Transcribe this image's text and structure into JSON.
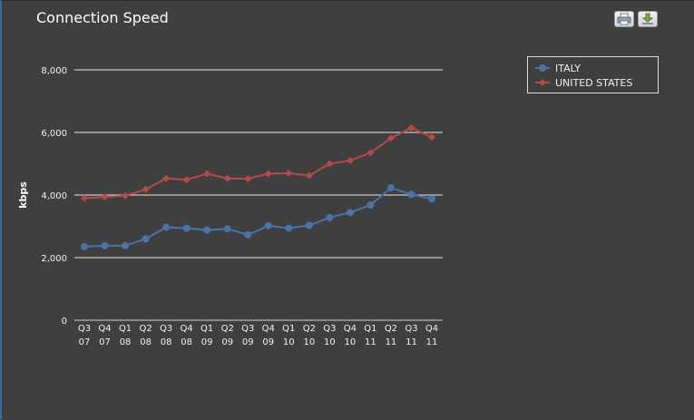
{
  "title": "Connection Speed",
  "toolbar": {
    "print_icon": "printer-icon",
    "export_icon": "download-icon"
  },
  "colors": {
    "italy": "#4a73a6",
    "united_states": "#b44a4a",
    "grid": "#e6e6e6"
  },
  "chart_data": {
    "type": "line",
    "title": "Connection Speed",
    "xlabel": "",
    "ylabel": "kbps",
    "ylim": [
      0,
      8000
    ],
    "yticks": [
      0,
      2000,
      4000,
      6000,
      8000
    ],
    "ytick_labels": [
      "0",
      "2,000",
      "4,000",
      "6,000",
      "8,000"
    ],
    "grid": true,
    "legend_position": "top-right",
    "categories": [
      [
        "Q3",
        "07"
      ],
      [
        "Q4",
        "07"
      ],
      [
        "Q1",
        "08"
      ],
      [
        "Q2",
        "08"
      ],
      [
        "Q3",
        "08"
      ],
      [
        "Q4",
        "08"
      ],
      [
        "Q1",
        "09"
      ],
      [
        "Q2",
        "09"
      ],
      [
        "Q3",
        "09"
      ],
      [
        "Q4",
        "09"
      ],
      [
        "Q1",
        "10"
      ],
      [
        "Q2",
        "10"
      ],
      [
        "Q3",
        "10"
      ],
      [
        "Q4",
        "10"
      ],
      [
        "Q1",
        "11"
      ],
      [
        "Q2",
        "11"
      ],
      [
        "Q3",
        "11"
      ],
      [
        "Q4",
        "11"
      ]
    ],
    "series": [
      {
        "name": "ITALY",
        "marker": "circle",
        "values": [
          2350,
          2380,
          2380,
          2600,
          2970,
          2940,
          2880,
          2920,
          2730,
          3020,
          2940,
          3030,
          3280,
          3440,
          3680,
          4230,
          4020,
          3880
        ]
      },
      {
        "name": "UNITED STATES",
        "marker": "diamond",
        "values": [
          3900,
          3940,
          3980,
          4180,
          4530,
          4490,
          4680,
          4530,
          4520,
          4680,
          4700,
          4620,
          5000,
          5100,
          5350,
          5820,
          6150,
          5850
        ]
      }
    ]
  }
}
